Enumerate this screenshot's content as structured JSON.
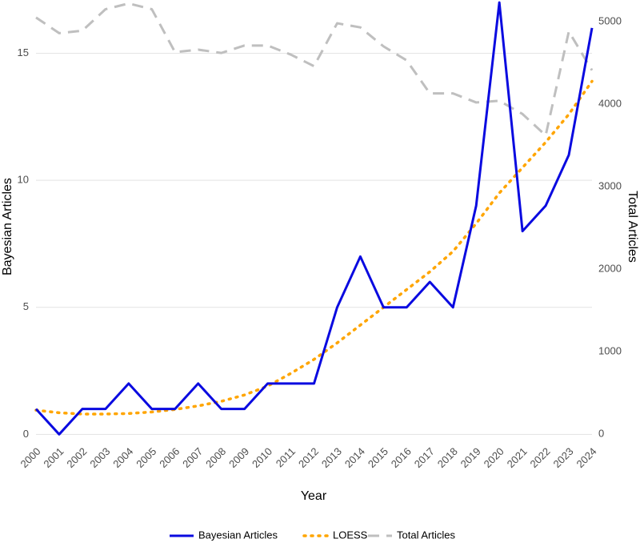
{
  "chart_data": {
    "type": "line",
    "x_label": "Year",
    "y_label": "Bayesian Articles",
    "y2_label": "Total Articles",
    "categories": [
      "2000",
      "2001",
      "2002",
      "2003",
      "2004",
      "2005",
      "2006",
      "2007",
      "2008",
      "2009",
      "2010",
      "2011",
      "2012",
      "2013",
      "2014",
      "2015",
      "2016",
      "2017",
      "2018",
      "2019",
      "2020",
      "2021",
      "2022",
      "2023",
      "2024"
    ],
    "series": [
      {
        "name": "Bayesian Articles",
        "color": "#0a0ae0",
        "style": "solid",
        "values": [
          1,
          0,
          1,
          1,
          2,
          1,
          1,
          2,
          1,
          1,
          2,
          2,
          2,
          5,
          7,
          5,
          5,
          6,
          5,
          9,
          17,
          8,
          9,
          11,
          16
        ]
      },
      {
        "name": "LOESS",
        "color": "#ffa500",
        "style": "dotted",
        "values": [
          0.95,
          0.85,
          0.8,
          0.8,
          0.82,
          0.88,
          0.98,
          1.12,
          1.3,
          1.55,
          1.9,
          2.4,
          2.95,
          3.6,
          4.3,
          5.0,
          5.7,
          6.4,
          7.2,
          8.3,
          9.5,
          10.5,
          11.5,
          12.6,
          13.9
        ]
      },
      {
        "name": "Total Articles",
        "color": "#bfbfbf",
        "style": "dashed",
        "axis": "y2",
        "values": [
          5050,
          4860,
          4890,
          5150,
          5220,
          5150,
          4630,
          4660,
          4620,
          4710,
          4710,
          4600,
          4460,
          4980,
          4930,
          4700,
          4530,
          4130,
          4130,
          4020,
          4040,
          3880,
          3620,
          4880,
          4410
        ]
      }
    ],
    "ylim": [
      -0.4,
      17.1
    ],
    "yticks": [
      0,
      5,
      10,
      15
    ],
    "y2lim": [
      -126,
      5262
    ],
    "y2ticks": [
      0,
      1000,
      2000,
      3000,
      4000,
      5000
    ],
    "grid": true,
    "legend": "bottom"
  }
}
